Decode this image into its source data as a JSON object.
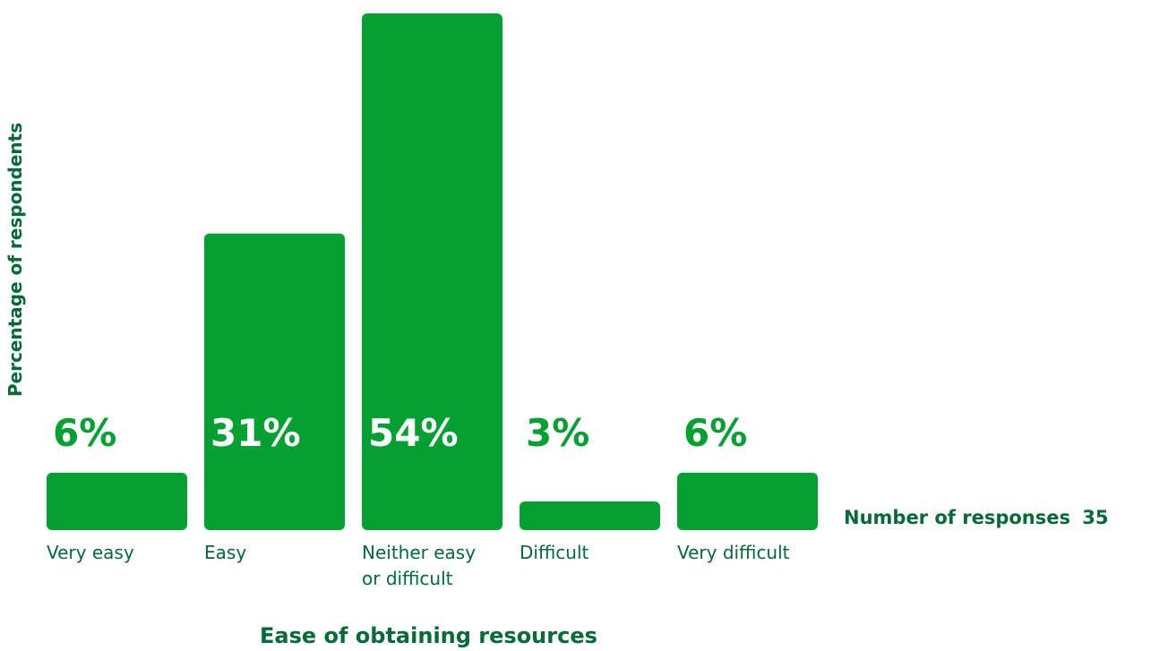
{
  "colors": {
    "bar": "#04a032",
    "text": "#046a38"
  },
  "responses": {
    "label": "Number of responses",
    "count": "35"
  },
  "chart_data": {
    "type": "bar",
    "xlabel": "Ease of obtaining resources",
    "ylabel": "Percentage of respondents",
    "categories": [
      [
        "Very easy"
      ],
      [
        "Easy"
      ],
      [
        "Neither easy",
        "or difficult"
      ],
      [
        "Difficult"
      ],
      [
        "Very difficult"
      ]
    ],
    "values": [
      6,
      31,
      54,
      3,
      6
    ],
    "value_labels": [
      "6%",
      "31%",
      "54%",
      "3%",
      "6%"
    ],
    "ylim": [
      0,
      54
    ],
    "grid": false,
    "legend": "none"
  }
}
